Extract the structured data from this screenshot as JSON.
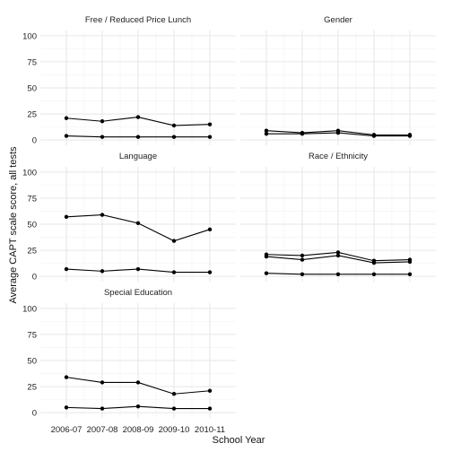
{
  "chart_data": {
    "type": "line",
    "xlabel": "School Year",
    "ylabel": "Average CAPT scale score, all tests",
    "x": [
      "2006-07",
      "2007-08",
      "2008-09",
      "2009-10",
      "2010-11"
    ],
    "ylim": [
      0,
      100
    ],
    "yticks": [
      0,
      25,
      50,
      75,
      100
    ],
    "grid": true,
    "panels": [
      {
        "title": "Free / Reduced Price Lunch",
        "series": [
          {
            "values": [
              21,
              18,
              22,
              14,
              15
            ]
          },
          {
            "values": [
              4,
              3,
              3,
              3,
              3
            ]
          }
        ]
      },
      {
        "title": "Gender",
        "series": [
          {
            "values": [
              9,
              7,
              9,
              5,
              5
            ]
          },
          {
            "values": [
              6,
              6,
              7,
              4,
              4
            ]
          }
        ]
      },
      {
        "title": "Language",
        "series": [
          {
            "values": [
              57,
              59,
              51,
              34,
              45
            ]
          },
          {
            "values": [
              7,
              5,
              7,
              4,
              4
            ]
          }
        ]
      },
      {
        "title": "Race / Ethnicity",
        "series": [
          {
            "values": [
              21,
              20,
              23,
              15,
              16
            ]
          },
          {
            "values": [
              19,
              16,
              20,
              13,
              14
            ]
          },
          {
            "values": [
              3,
              2,
              2,
              2,
              2
            ]
          }
        ]
      },
      {
        "title": "Special Education",
        "series": [
          {
            "values": [
              34,
              29,
              29,
              18,
              21
            ]
          },
          {
            "values": [
              5,
              4,
              6,
              4,
              4
            ]
          }
        ]
      }
    ]
  }
}
